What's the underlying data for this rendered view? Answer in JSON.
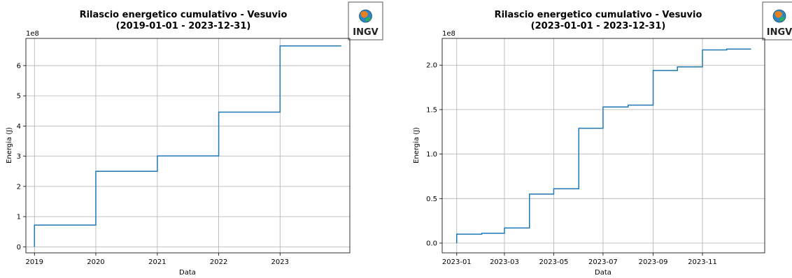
{
  "chart_data": [
    {
      "type": "line",
      "step": true,
      "title_line1": "Rilascio energetico cumulativo - Vesuvio",
      "title_line2": "(2019-01-01 - 2023-12-31)",
      "xlabel": "Data",
      "ylabel": "Energia (J)",
      "y_multiplier": "1e8",
      "x_ticks": [
        "2019",
        "2020",
        "2021",
        "2022",
        "2023"
      ],
      "y_ticks": [
        "0",
        "1",
        "2",
        "3",
        "4",
        "5",
        "6"
      ],
      "xlim": [
        "2018-11-11",
        "2024-02-20"
      ],
      "ylim": [
        -0.2,
        6.9
      ],
      "y_ticks_values": [
        0,
        1,
        2,
        3,
        4,
        5,
        6
      ],
      "x_ticks_values": [
        "2019-01-01",
        "2020-01-01",
        "2021-01-01",
        "2022-01-01",
        "2023-01-01"
      ],
      "grid": true,
      "line_color": "#1f77b4",
      "series": [
        {
          "x": [
            "2019-01-01",
            "2019-01-01",
            "2020-01-01",
            "2021-01-01",
            "2022-01-01",
            "2023-01-01",
            "2023-12-31"
          ],
          "y": [
            0.0,
            0.72,
            2.5,
            3.01,
            4.46,
            6.65,
            6.65
          ]
        }
      ]
    },
    {
      "type": "line",
      "step": true,
      "title_line1": "Rilascio energetico cumulativo - Vesuvio",
      "title_line2": "(2023-01-01 - 2023-12-31)",
      "xlabel": "Data",
      "ylabel": "Energia (J)",
      "y_multiplier": "1e8",
      "x_ticks": [
        "2023-01",
        "2023-03",
        "2023-05",
        "2023-07",
        "2023-09",
        "2023-11"
      ],
      "y_ticks": [
        "0.0",
        "0.5",
        "1.0",
        "1.5",
        "2.0"
      ],
      "xlim": [
        "2022-12-14",
        "2024-01-17"
      ],
      "ylim": [
        -0.11,
        2.3
      ],
      "y_ticks_values": [
        0.0,
        0.5,
        1.0,
        1.5,
        2.0
      ],
      "x_ticks_values": [
        "2023-01-01",
        "2023-03-01",
        "2023-05-01",
        "2023-07-01",
        "2023-09-01",
        "2023-11-01"
      ],
      "grid": true,
      "line_color": "#1f77b4",
      "series": [
        {
          "x": [
            "2023-01-01",
            "2023-01-01",
            "2023-02-01",
            "2023-03-01",
            "2023-04-01",
            "2023-05-01",
            "2023-06-01",
            "2023-07-01",
            "2023-08-01",
            "2023-09-01",
            "2023-10-01",
            "2023-11-01",
            "2023-12-01",
            "2023-12-31"
          ],
          "y": [
            0.0,
            0.1,
            0.11,
            0.17,
            0.55,
            0.61,
            1.29,
            1.53,
            1.55,
            1.94,
            1.98,
            2.17,
            2.18,
            2.18
          ]
        }
      ]
    }
  ],
  "logo": {
    "text": "INGV"
  }
}
